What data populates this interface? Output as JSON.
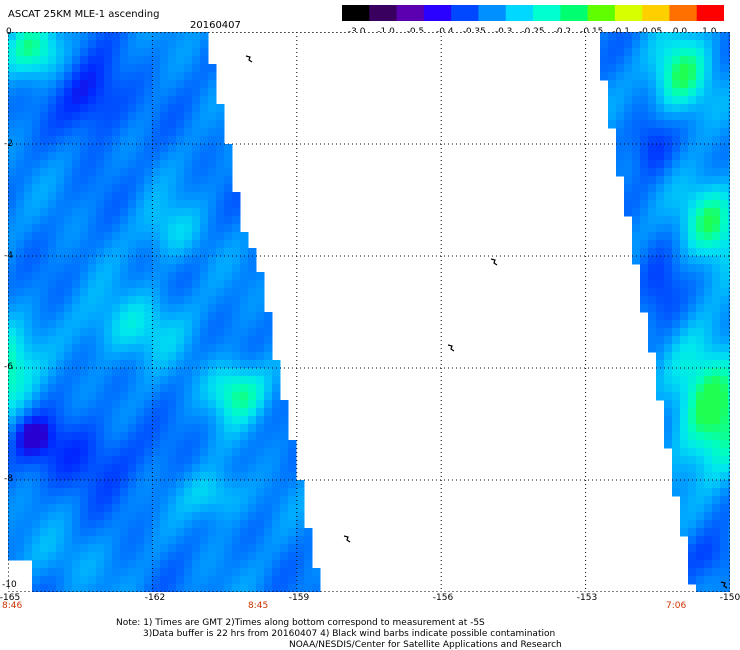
{
  "header": {
    "title": "ASCAT 25KM MLE-1 ascending",
    "date": "20160407"
  },
  "colorbar": {
    "labels": [
      "-3.0",
      "-1.0",
      "-0.5",
      "-0.4",
      "-0.35",
      "-0.3",
      "-0.25",
      "-0.2",
      "-0.15",
      "-0.1",
      "-0.05",
      "0.0",
      "1.0"
    ],
    "colors": [
      "#000000",
      "#3a0060",
      "#5a00b0",
      "#2a00ff",
      "#0048ff",
      "#0090ff",
      "#00d8ff",
      "#00ffd0",
      "#00ff70",
      "#60ff00",
      "#d8ff00",
      "#ffd000",
      "#ff7000",
      "#ff0000"
    ]
  },
  "map": {
    "y_ticks": [
      "0",
      "-2",
      "-4",
      "-6",
      "-8",
      "-10"
    ],
    "x_ticks": [
      "-165",
      "-162",
      "-159",
      "-156",
      "-153",
      "-150"
    ],
    "lon_range": [
      -165,
      -150
    ],
    "lat_range": [
      -10,
      0
    ],
    "pass_times": [
      "8:46",
      "8:45",
      "7:06"
    ]
  },
  "notes": {
    "line1": "Note: 1) Times are GMT 2)Times along bottom correspond to measurement at -5S",
    "line2": "3)Data buffer is 22 hrs from 20160407 4) Black wind barbs indicate possible contamination",
    "line3": "NOAA/NESDIS/Center for Satellite Applications and Research"
  }
}
